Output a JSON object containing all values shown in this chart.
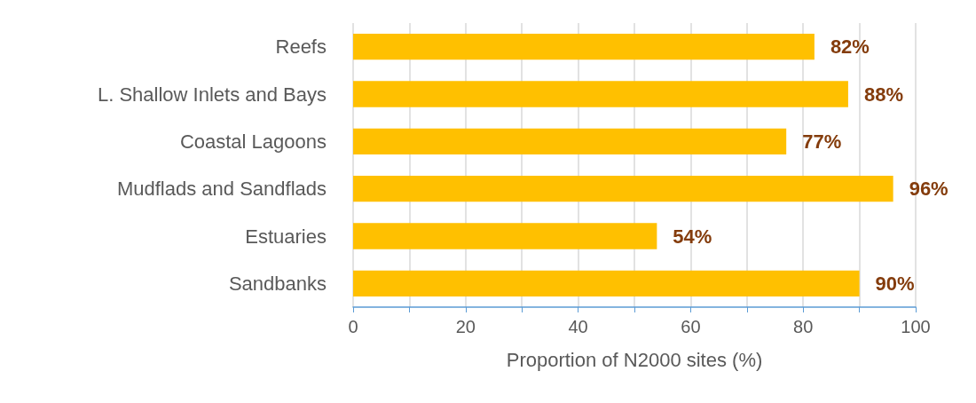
{
  "chart_data": {
    "type": "bar",
    "orientation": "horizontal",
    "xlabel": "Proportion of N2000 sites (%)",
    "categories": [
      "Reefs",
      "L. Shallow Inlets and Bays",
      "Coastal Lagoons",
      "Mudflads and Sandflads",
      "Estuaries",
      "Sandbanks"
    ],
    "values": [
      82,
      88,
      77,
      96,
      54,
      90
    ],
    "value_labels": [
      "82%",
      "88%",
      "77%",
      "96%",
      "54%",
      "90%"
    ],
    "color": "#ffc000",
    "xlim": [
      0,
      100
    ],
    "xticks": [
      0,
      {
        "value": 10,
        "label": null
      },
      20,
      {
        "value": 30,
        "label": null
      },
      40,
      {
        "value": 50,
        "label": null
      },
      60,
      {
        "value": 70,
        "label": null
      },
      80,
      {
        "value": 90,
        "label": null
      },
      100
    ],
    "grid": "x"
  }
}
